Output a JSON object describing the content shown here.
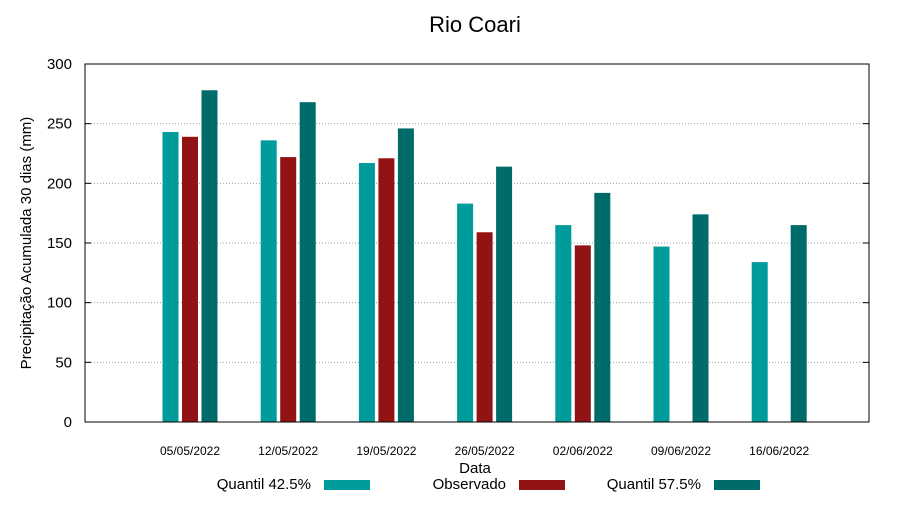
{
  "chart_data": {
    "type": "bar",
    "title": "Rio Coari",
    "xlabel": "Data",
    "ylabel": "Precipitação Acumulada 30 dias (mm)",
    "ylim": [
      0,
      300
    ],
    "yticks": [
      0,
      50,
      100,
      150,
      200,
      250,
      300
    ],
    "grid": true,
    "legend_position": "bottom",
    "categories": [
      "05/05/2022",
      "12/05/2022",
      "19/05/2022",
      "26/05/2022",
      "02/06/2022",
      "09/06/2022",
      "16/06/2022"
    ],
    "series": [
      {
        "name": "Quantil 42.5%",
        "color": "#009b9b",
        "values": [
          243,
          236,
          217,
          183,
          165,
          147,
          134
        ]
      },
      {
        "name": "Observado",
        "color": "#921314",
        "values": [
          239,
          222,
          221,
          159,
          148,
          null,
          null
        ]
      },
      {
        "name": "Quantil 57.5%",
        "color": "#006b6b",
        "values": [
          278,
          268,
          246,
          214,
          192,
          174,
          165
        ]
      }
    ]
  }
}
